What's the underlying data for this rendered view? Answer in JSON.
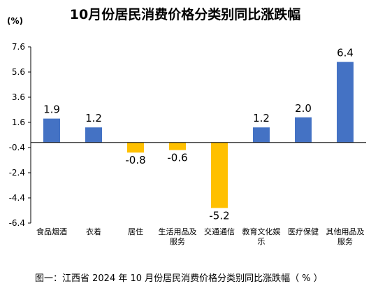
{
  "chart_data": {
    "type": "bar",
    "title": "10月份居民消费价格分类别同比涨跌幅",
    "unit_label": "(%)",
    "caption": "图一：江西省 2024 年 10 月份居民消费价格分类别同比涨跌幅（ % ）",
    "categories": [
      [
        "食品烟酒"
      ],
      [
        "衣着"
      ],
      [
        "居住"
      ],
      [
        "生活用品及",
        "服务"
      ],
      [
        "交通通信"
      ],
      [
        "教育文化娱",
        "乐"
      ],
      [
        "医疗保健"
      ],
      [
        "其他用品及",
        "服务"
      ]
    ],
    "values": [
      1.9,
      1.2,
      -0.8,
      -0.6,
      -5.2,
      1.2,
      2.0,
      6.4
    ],
    "value_labels": [
      "1.9",
      "1.2",
      "-0.8",
      "-0.6",
      "-5.2",
      "1.2",
      "2.0",
      "6.4"
    ],
    "ylim": [
      -6.4,
      7.6
    ],
    "yticks": [
      "7.6",
      "5.6",
      "3.6",
      "1.6",
      "-0.4",
      "-2.4",
      "-4.4",
      "-6.4"
    ],
    "colors": {
      "positive": "#4472C4",
      "negative": "#FFC000",
      "axis": "#000000"
    },
    "grid": false,
    "legend": "none"
  }
}
